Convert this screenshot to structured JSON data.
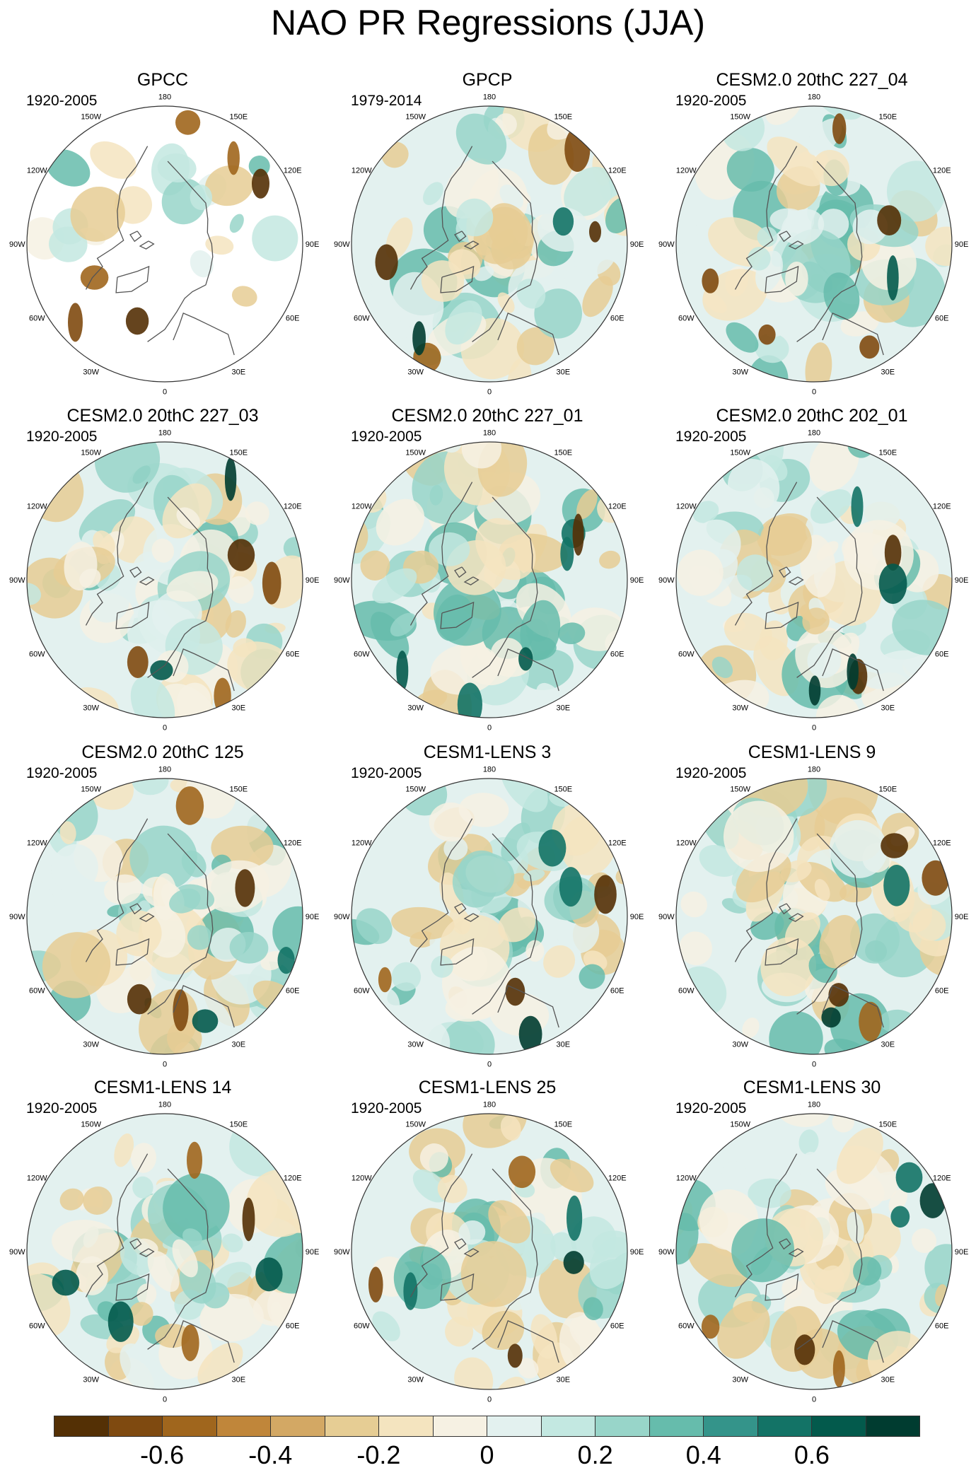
{
  "chart_data": {
    "type": "heatmap",
    "title": "NAO PR Regressions (JJA)",
    "projection": "north polar stereographic",
    "longitude_labels": [
      "180",
      "150E",
      "120E",
      "90E",
      "60E",
      "30E",
      "0",
      "30W",
      "60W",
      "90W",
      "120W",
      "150W"
    ],
    "panels": [
      {
        "name": "GPCC",
        "period": "1920-2005",
        "data_coverage": "land only"
      },
      {
        "name": "GPCP",
        "period": "1979-2014",
        "data_coverage": "global"
      },
      {
        "name": "CESM2.0 20thC 227_04",
        "period": "1920-2005",
        "data_coverage": "global"
      },
      {
        "name": "CESM2.0 20thC 227_03",
        "period": "1920-2005",
        "data_coverage": "global"
      },
      {
        "name": "CESM2.0 20thC 227_01",
        "period": "1920-2005",
        "data_coverage": "global"
      },
      {
        "name": "CESM2.0 20thC 202_01",
        "period": "1920-2005",
        "data_coverage": "global"
      },
      {
        "name": "CESM2.0 20thC 125",
        "period": "1920-2005",
        "data_coverage": "global"
      },
      {
        "name": "CESM1-LENS 3",
        "period": "1920-2005",
        "data_coverage": "global"
      },
      {
        "name": "CESM1-LENS 9",
        "period": "1920-2005",
        "data_coverage": "global"
      },
      {
        "name": "CESM1-LENS 14",
        "period": "1920-2005",
        "data_coverage": "global"
      },
      {
        "name": "CESM1-LENS 25",
        "period": "1920-2005",
        "data_coverage": "global"
      },
      {
        "name": "CESM1-LENS 30",
        "period": "1920-2005",
        "data_coverage": "global"
      }
    ],
    "colorbar": {
      "colors": [
        "#543005",
        "#7f4a10",
        "#a0661d",
        "#c0863a",
        "#d3a864",
        "#e6cd94",
        "#f4e4bf",
        "#f6f1e3",
        "#e3f1ef",
        "#c3e8e1",
        "#98d5c9",
        "#66bcac",
        "#34948a",
        "#137366",
        "#035a4c",
        "#003c30"
      ],
      "tick_labels": [
        "-0.6",
        "-0.4",
        "-0.2",
        "0",
        "0.2",
        "0.4",
        "0.6"
      ],
      "tick_positions": [
        2,
        4,
        6,
        8,
        10,
        12,
        14
      ]
    }
  }
}
